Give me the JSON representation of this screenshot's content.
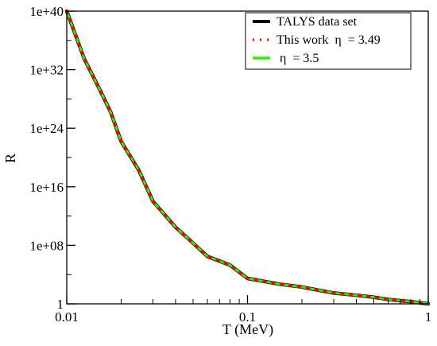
{
  "chart_data": {
    "type": "line",
    "title": "",
    "xlabel": "T (MeV)",
    "ylabel": "R",
    "xscale": "log",
    "yscale": "log",
    "xlim": [
      0.01,
      1
    ],
    "ylim": [
      1,
      1e+40
    ],
    "grid": false,
    "legend_position": "top-right",
    "x_ticks": [
      {
        "value": 0.01,
        "label": "0.01"
      },
      {
        "value": 0.1,
        "label": "0.1"
      },
      {
        "value": 1,
        "label": "1"
      }
    ],
    "y_ticks": [
      {
        "value": 1,
        "label": "1"
      },
      {
        "value": 100000000.0,
        "label": "1e+08"
      },
      {
        "value": 1e+16,
        "label": "1e+16"
      },
      {
        "value": 1e+24,
        "label": "1e+24"
      },
      {
        "value": 1e+32,
        "label": "1e+32"
      },
      {
        "value": 1e+40,
        "label": "1e+40"
      }
    ],
    "series": [
      {
        "name": "TALYS data set",
        "color": "#000000",
        "style": "solid",
        "x": [
          0.01,
          0.0125,
          0.015,
          0.0175,
          0.02,
          0.025,
          0.03,
          0.04,
          0.05,
          0.06,
          0.08,
          0.1,
          0.15,
          0.2,
          0.3,
          0.4,
          0.5,
          0.6,
          0.8,
          1.0
        ],
        "y": [
          1e+40,
          3e+33,
          4e+29,
          1.6e+26,
          1.5e+22,
          2e+18,
          100000000000000.0,
          30000000000.0,
          200000000.0,
          3000000.0,
          200000.0,
          3000.0,
          500.0,
          200.0,
          30.0,
          15.0,
          8,
          4,
          2,
          1
        ]
      },
      {
        "name": "This work  η  = 3.49",
        "color": "#ff0000",
        "style": "dotted",
        "x": [
          0.01,
          0.0125,
          0.015,
          0.0175,
          0.02,
          0.025,
          0.03,
          0.04,
          0.05,
          0.06,
          0.08,
          0.1,
          0.15,
          0.2,
          0.3,
          0.4,
          0.5,
          0.6,
          0.8,
          1.0
        ],
        "y": [
          1e+40,
          3e+33,
          4e+29,
          1.6e+26,
          1.5e+22,
          2e+18,
          100000000000000.0,
          30000000000.0,
          200000000.0,
          3000000.0,
          200000.0,
          3000.0,
          500.0,
          200.0,
          30.0,
          15.0,
          8,
          4,
          2,
          1
        ]
      },
      {
        "name": " η  = 3.5",
        "color": "#33ee00",
        "style": "solid",
        "x": [
          0.01,
          0.0125,
          0.015,
          0.0175,
          0.02,
          0.025,
          0.03,
          0.04,
          0.05,
          0.06,
          0.08,
          0.1,
          0.15,
          0.2,
          0.3,
          0.4,
          0.5,
          0.6,
          0.8,
          1.0
        ],
        "y": [
          1e+40,
          3e+33,
          4e+29,
          1.6e+26,
          1.5e+22,
          2e+18,
          100000000000000.0,
          30000000000.0,
          200000000.0,
          3000000.0,
          200000.0,
          3000.0,
          500.0,
          200.0,
          30.0,
          15.0,
          8,
          4,
          2,
          1
        ]
      }
    ]
  }
}
